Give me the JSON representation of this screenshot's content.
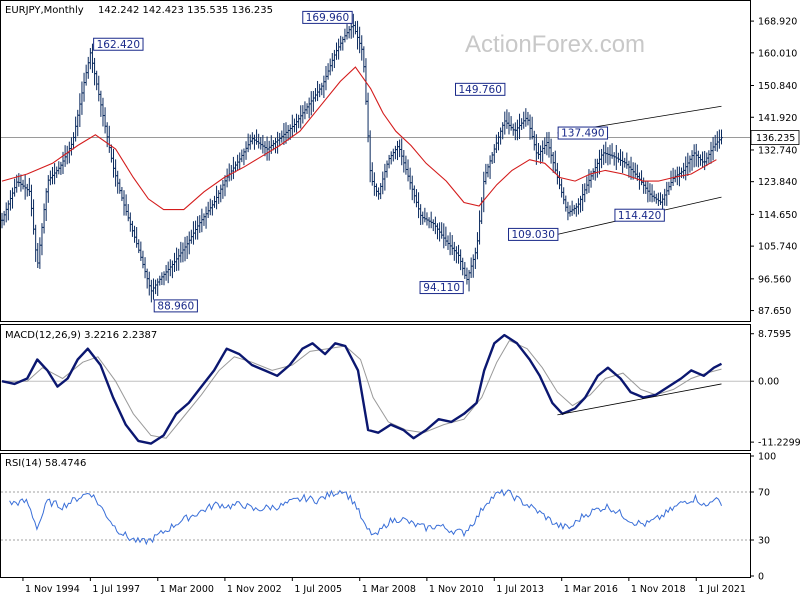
{
  "watermark": "ActionForex.com",
  "chart_data": [
    {
      "type": "bar",
      "panel": "price",
      "title": "EURJPY,Monthly",
      "ohlc_text": "142.242 142.423 135.535 136.235",
      "ylim": [
        85.0,
        174.0
      ],
      "y_ticks": [
        "168.920",
        "160.010",
        "150.840",
        "141.920",
        "132.740",
        "123.840",
        "114.650",
        "105.740",
        "96.560",
        "87.650"
      ],
      "current_price": "136.235",
      "x_ticks": [
        "1 Nov 1994",
        "1 Jul 1997",
        "1 Mar 2000",
        "1 Nov 2002",
        "1 Jul 2005",
        "1 Mar 2008",
        "1 Nov 2010",
        "1 Jul 2013",
        "1 Mar 2016",
        "1 Nov 2018",
        "1 Jul 2021"
      ],
      "annotations": [
        "162.420",
        "169.960",
        "88.960",
        "149.760",
        "137.490",
        "94.110",
        "109.030",
        "114.420"
      ],
      "close_path": [
        [
          1994,
          113
        ],
        [
          1994.6,
          124
        ],
        [
          1995.1,
          121
        ],
        [
          1995.4,
          100
        ],
        [
          1995.8,
          124
        ],
        [
          1996.3,
          128
        ],
        [
          1996.8,
          135
        ],
        [
          1997.2,
          150
        ],
        [
          1997.5,
          160
        ],
        [
          1997.9,
          146
        ],
        [
          1998.4,
          128
        ],
        [
          1998.8,
          118
        ],
        [
          1999.4,
          105
        ],
        [
          1999.9,
          93
        ],
        [
          2000.2,
          96
        ],
        [
          2000.8,
          101
        ],
        [
          2001.3,
          106
        ],
        [
          2001.8,
          112
        ],
        [
          2002.4,
          118
        ],
        [
          2002.9,
          125
        ],
        [
          2003.4,
          130
        ],
        [
          2003.9,
          136
        ],
        [
          2004.5,
          133
        ],
        [
          2005.0,
          136
        ],
        [
          2005.6,
          140
        ],
        [
          2006.1,
          145
        ],
        [
          2006.7,
          151
        ],
        [
          2007.2,
          160
        ],
        [
          2007.6,
          165
        ],
        [
          2007.9,
          168
        ],
        [
          2008.3,
          160
        ],
        [
          2008.6,
          125
        ],
        [
          2008.9,
          120
        ],
        [
          2009.3,
          130
        ],
        [
          2009.7,
          134
        ],
        [
          2010.1,
          125
        ],
        [
          2010.6,
          114
        ],
        [
          2011.1,
          112
        ],
        [
          2011.6,
          107
        ],
        [
          2012.1,
          103
        ],
        [
          2012.4,
          96
        ],
        [
          2012.8,
          105
        ],
        [
          2013.1,
          125
        ],
        [
          2013.5,
          133
        ],
        [
          2013.9,
          141
        ],
        [
          2014.3,
          138
        ],
        [
          2014.8,
          142
        ],
        [
          2015.2,
          131
        ],
        [
          2015.6,
          135
        ],
        [
          2016.0,
          125
        ],
        [
          2016.4,
          115
        ],
        [
          2016.8,
          117
        ],
        [
          2017.3,
          125
        ],
        [
          2017.8,
          132
        ],
        [
          2018.2,
          131
        ],
        [
          2018.7,
          129
        ],
        [
          2019.2,
          125
        ],
        [
          2019.7,
          120
        ],
        [
          2020.1,
          118
        ],
        [
          2020.6,
          125
        ],
        [
          2021.0,
          127
        ],
        [
          2021.4,
          132
        ],
        [
          2021.8,
          129
        ],
        [
          2022.2,
          134
        ],
        [
          2022.5,
          136.2
        ]
      ],
      "sma_path": [
        [
          1994,
          124
        ],
        [
          1995,
          126
        ],
        [
          1996,
          129
        ],
        [
          1997,
          134
        ],
        [
          1997.7,
          137
        ],
        [
          1998.5,
          133
        ],
        [
          1999.2,
          125
        ],
        [
          1999.8,
          119
        ],
        [
          2000.4,
          116
        ],
        [
          2001.2,
          116
        ],
        [
          2002.0,
          121
        ],
        [
          2002.8,
          125
        ],
        [
          2003.6,
          128
        ],
        [
          2004.3,
          131
        ],
        [
          2005.0,
          134
        ],
        [
          2005.8,
          138
        ],
        [
          2006.6,
          145
        ],
        [
          2007.4,
          152
        ],
        [
          2008.0,
          156
        ],
        [
          2008.6,
          150
        ],
        [
          2009.1,
          143
        ],
        [
          2009.6,
          138
        ],
        [
          2010.2,
          134
        ],
        [
          2010.8,
          129
        ],
        [
          2011.6,
          124
        ],
        [
          2012.3,
          118
        ],
        [
          2012.9,
          117
        ],
        [
          2013.6,
          123
        ],
        [
          2014.2,
          127
        ],
        [
          2014.9,
          130
        ],
        [
          2015.5,
          129
        ],
        [
          2016.1,
          125
        ],
        [
          2016.7,
          124
        ],
        [
          2017.3,
          126
        ],
        [
          2017.9,
          127
        ],
        [
          2018.6,
          126
        ],
        [
          2019.4,
          124
        ],
        [
          2020.0,
          124
        ],
        [
          2020.6,
          125
        ],
        [
          2021.3,
          126
        ],
        [
          2021.8,
          128
        ],
        [
          2022.3,
          130
        ]
      ],
      "channel_upper": [
        [
          2016.0,
          137.49
        ],
        [
          2022.5,
          145.0
        ]
      ],
      "channel_lower": [
        [
          2016.0,
          109.03
        ],
        [
          2022.5,
          119.5
        ]
      ],
      "x_range": [
        1994.0,
        2023.55
      ]
    },
    {
      "type": "line",
      "panel": "macd",
      "title": "MACD(12,26,9) 3.2216 2.2387",
      "ylim": [
        -12.5,
        10.0
      ],
      "y_ticks": [
        "8.7595",
        "0.00",
        "-11.2299"
      ],
      "x_range": [
        1994.0,
        2023.55
      ],
      "macd": [
        [
          1994,
          0
        ],
        [
          1994.5,
          -0.5
        ],
        [
          1995.0,
          0.5
        ],
        [
          1995.4,
          4.0
        ],
        [
          1995.8,
          2.0
        ],
        [
          1996.2,
          -1.0
        ],
        [
          1996.6,
          0.5
        ],
        [
          1997.0,
          4.0
        ],
        [
          1997.4,
          6.0
        ],
        [
          1997.9,
          3.0
        ],
        [
          1998.4,
          -3.0
        ],
        [
          1998.9,
          -8.0
        ],
        [
          1999.4,
          -11.0
        ],
        [
          1999.9,
          -11.5
        ],
        [
          2000.4,
          -10.0
        ],
        [
          2000.9,
          -6.0
        ],
        [
          2001.4,
          -4.0
        ],
        [
          2001.9,
          -1.0
        ],
        [
          2002.4,
          2.0
        ],
        [
          2002.9,
          6.0
        ],
        [
          2003.4,
          5.0
        ],
        [
          2003.9,
          3.0
        ],
        [
          2004.4,
          2.0
        ],
        [
          2004.9,
          1.0
        ],
        [
          2005.4,
          3.0
        ],
        [
          2005.9,
          6.0
        ],
        [
          2006.3,
          7.0
        ],
        [
          2006.8,
          5.0
        ],
        [
          2007.2,
          7.0
        ],
        [
          2007.6,
          6.5
        ],
        [
          2008.1,
          2.0
        ],
        [
          2008.5,
          -9.0
        ],
        [
          2008.9,
          -9.5
        ],
        [
          2009.4,
          -8.0
        ],
        [
          2009.9,
          -9.0
        ],
        [
          2010.3,
          -10.5
        ],
        [
          2010.8,
          -9.0
        ],
        [
          2011.3,
          -7.0
        ],
        [
          2011.8,
          -7.5
        ],
        [
          2012.3,
          -6.0
        ],
        [
          2012.8,
          -4.0
        ],
        [
          2013.1,
          2.0
        ],
        [
          2013.5,
          7.0
        ],
        [
          2013.9,
          8.5
        ],
        [
          2014.4,
          7.0
        ],
        [
          2014.9,
          4.0
        ],
        [
          2015.3,
          1.0
        ],
        [
          2015.8,
          -4.0
        ],
        [
          2016.2,
          -6.0
        ],
        [
          2016.7,
          -5.0
        ],
        [
          2017.1,
          -3.0
        ],
        [
          2017.6,
          1.0
        ],
        [
          2018.0,
          2.5
        ],
        [
          2018.5,
          0.5
        ],
        [
          2018.9,
          -2.0
        ],
        [
          2019.4,
          -3.0
        ],
        [
          2019.9,
          -2.5
        ],
        [
          2020.4,
          -1.0
        ],
        [
          2020.9,
          0.5
        ],
        [
          2021.3,
          2.0
        ],
        [
          2021.8,
          1.0
        ],
        [
          2022.2,
          2.5
        ],
        [
          2022.5,
          3.22
        ]
      ],
      "signal": [
        [
          1994,
          0
        ],
        [
          1995.0,
          0
        ],
        [
          1995.6,
          2.5
        ],
        [
          1996.4,
          0.5
        ],
        [
          1997.2,
          3.5
        ],
        [
          1997.8,
          4.5
        ],
        [
          1998.5,
          0
        ],
        [
          1999.2,
          -6.0
        ],
        [
          1999.9,
          -10.0
        ],
        [
          2000.5,
          -10.5
        ],
        [
          2001.2,
          -6.5
        ],
        [
          2001.9,
          -2.5
        ],
        [
          2002.6,
          2.0
        ],
        [
          2003.2,
          4.5
        ],
        [
          2003.9,
          3.5
        ],
        [
          2004.7,
          2.0
        ],
        [
          2005.5,
          3.0
        ],
        [
          2006.2,
          5.5
        ],
        [
          2006.9,
          6.0
        ],
        [
          2007.6,
          6.5
        ],
        [
          2008.2,
          4.0
        ],
        [
          2008.7,
          -3.0
        ],
        [
          2009.3,
          -7.5
        ],
        [
          2010.0,
          -9.0
        ],
        [
          2010.7,
          -9.5
        ],
        [
          2011.5,
          -8.0
        ],
        [
          2012.3,
          -7.0
        ],
        [
          2013.0,
          -3.0
        ],
        [
          2013.6,
          3.5
        ],
        [
          2014.1,
          7.5
        ],
        [
          2014.8,
          6.0
        ],
        [
          2015.4,
          2.5
        ],
        [
          2016.0,
          -2.0
        ],
        [
          2016.6,
          -4.5
        ],
        [
          2017.3,
          -2.5
        ],
        [
          2017.9,
          0.5
        ],
        [
          2018.6,
          1.5
        ],
        [
          2019.3,
          -1.5
        ],
        [
          2019.9,
          -2.5
        ],
        [
          2020.6,
          -1.5
        ],
        [
          2021.3,
          0.5
        ],
        [
          2021.9,
          1.5
        ],
        [
          2022.5,
          2.24
        ]
      ],
      "trendline": [
        [
          2016.0,
          -6.2
        ],
        [
          2022.5,
          -0.5
        ]
      ]
    },
    {
      "type": "line",
      "panel": "rsi",
      "title": "RSI(14) 58.4746",
      "ylim": [
        0,
        100
      ],
      "y_ticks": [
        "100",
        "70",
        "30",
        "0"
      ],
      "levels": [
        70,
        30
      ],
      "x_range": [
        1994.0,
        2023.55
      ],
      "rsi": [
        [
          1994,
          60
        ],
        [
          1995.0,
          62
        ],
        [
          1995.4,
          40
        ],
        [
          1995.8,
          62
        ],
        [
          1996.4,
          58
        ],
        [
          1997.0,
          65
        ],
        [
          1997.5,
          70
        ],
        [
          1998.0,
          55
        ],
        [
          1998.5,
          40
        ],
        [
          1999.0,
          32
        ],
        [
          1999.5,
          28
        ],
        [
          1999.9,
          30
        ],
        [
          2000.5,
          38
        ],
        [
          2001.0,
          45
        ],
        [
          2001.5,
          50
        ],
        [
          2002.0,
          55
        ],
        [
          2002.5,
          60
        ],
        [
          2003.0,
          58
        ],
        [
          2003.5,
          60
        ],
        [
          2004.0,
          55
        ],
        [
          2004.5,
          57
        ],
        [
          2005.0,
          58
        ],
        [
          2005.5,
          62
        ],
        [
          2006.0,
          65
        ],
        [
          2006.5,
          63
        ],
        [
          2007.0,
          68
        ],
        [
          2007.5,
          72
        ],
        [
          2008.0,
          60
        ],
        [
          2008.4,
          40
        ],
        [
          2008.8,
          33
        ],
        [
          2009.3,
          45
        ],
        [
          2009.8,
          48
        ],
        [
          2010.3,
          43
        ],
        [
          2010.8,
          40
        ],
        [
          2011.3,
          42
        ],
        [
          2011.8,
          38
        ],
        [
          2012.3,
          36
        ],
        [
          2012.8,
          48
        ],
        [
          2013.2,
          62
        ],
        [
          2013.6,
          68
        ],
        [
          2014.0,
          70
        ],
        [
          2014.5,
          63
        ],
        [
          2015.0,
          57
        ],
        [
          2015.5,
          50
        ],
        [
          2016.0,
          42
        ],
        [
          2016.5,
          40
        ],
        [
          2017.0,
          50
        ],
        [
          2017.5,
          55
        ],
        [
          2018.0,
          58
        ],
        [
          2018.5,
          52
        ],
        [
          2019.0,
          45
        ],
        [
          2019.5,
          43
        ],
        [
          2020.0,
          48
        ],
        [
          2020.5,
          55
        ],
        [
          2021.0,
          62
        ],
        [
          2021.5,
          65
        ],
        [
          2021.9,
          57
        ],
        [
          2022.2,
          66
        ],
        [
          2022.5,
          58.47
        ]
      ]
    }
  ]
}
